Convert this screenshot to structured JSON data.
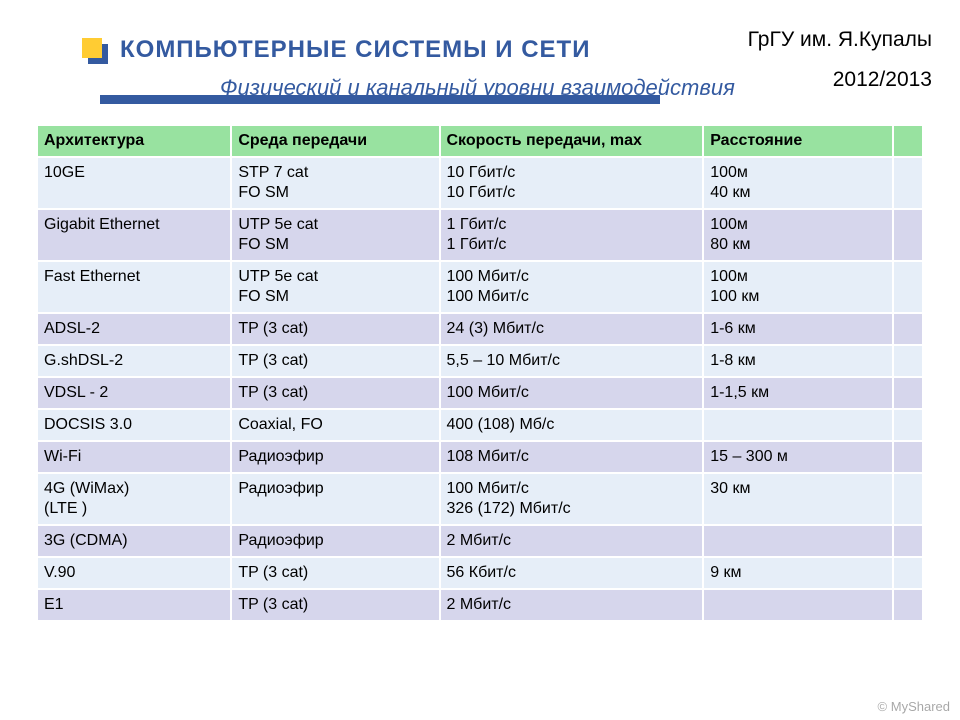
{
  "header": {
    "org": "ГрГУ им. Я.Купалы",
    "year": "2012/2013",
    "title": "КОМПЬЮТЕРНЫЕ СИСТЕМЫ  И СЕТИ",
    "subtitle": "Физический и канальный уровни взаимодействия"
  },
  "table": {
    "header_bg": "#98e2a0",
    "row_colors": [
      "#e6eef8",
      "#d6d6ec",
      "#e6eef8",
      "#d6d6ec",
      "#e6eef8",
      "#d6d6ec",
      "#e6eef8",
      "#d6d6ec",
      "#e6eef8",
      "#d6d6ec",
      "#e6eef8",
      "#d6d6ec"
    ],
    "columns": [
      "Архитектура",
      "Среда передачи",
      "Скорость передачи, max",
      "Расстояние",
      ""
    ],
    "rows": [
      [
        "10GE",
        "STP 7 cat\nFO SM",
        "10 Гбит/с\n10 Гбит/с",
        "100м\n40 км",
        ""
      ],
      [
        "Gigabit Ethernet",
        "UTP 5e cat\nFO SM",
        "1 Гбит/с\n1 Гбит/с",
        "100м\n80 км",
        ""
      ],
      [
        "Fast Ethernet",
        "UTP 5e cat\nFO SM",
        "100 Мбит/с\n100 Мбит/с",
        "100м\n100 км",
        ""
      ],
      [
        "ADSL-2",
        "TP (3 cat)",
        "24 (3) Мбит/с",
        "1-6 км",
        ""
      ],
      [
        "G.shDSL-2",
        "TP (3 cat)",
        "5,5 – 10 Мбит/с",
        "1-8 км",
        ""
      ],
      [
        "VDSL - 2",
        "TP (3 cat)",
        "100 Мбит/с",
        "1-1,5 км",
        ""
      ],
      [
        "DOCSIS 3.0",
        "Coaxial, FO",
        "400 (108) Мб/с",
        "",
        ""
      ],
      [
        "Wi-Fi",
        "Радиоэфир",
        "108 Мбит/с",
        "15 – 300 м",
        ""
      ],
      [
        "4G (WiMax)\n    (LTE )",
        "Радиоэфир",
        "100 Мбит/с\n326 (172) Мбит/с",
        "30 км",
        ""
      ],
      [
        "3G (CDMA)",
        "Радиоэфир",
        "2 Мбит/с",
        "",
        ""
      ],
      [
        "V.90",
        "TP (3 cat)",
        "56 Кбит/с",
        "9 км",
        ""
      ],
      [
        "E1",
        "TP (3 cat)",
        "2 Мбит/с",
        "",
        ""
      ]
    ]
  },
  "watermark": "© MyShared"
}
